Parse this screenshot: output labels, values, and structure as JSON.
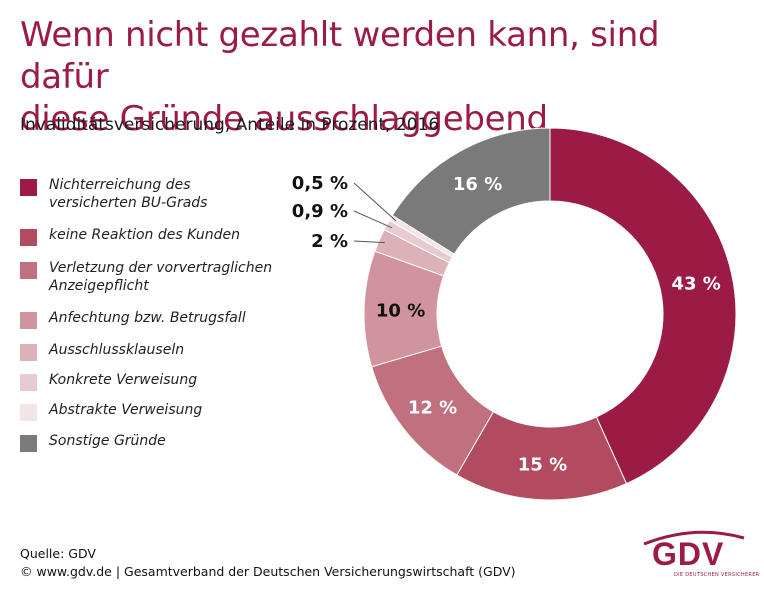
{
  "title": {
    "line1": "Wenn nicht gezahlt werden kann, sind dafür",
    "line2": "diese Gründe ausschlaggebend"
  },
  "subtitle": "Invaliditätsversicherung, Anteile in Prozent, 2016",
  "chart_data": {
    "type": "pie",
    "donut": true,
    "series": [
      {
        "label_lines": [
          "Nichterreichung des",
          "versicherten BU-Grads"
        ],
        "value": 43,
        "value_label": "43 %",
        "color": "#9b1b45"
      },
      {
        "label_lines": [
          "keine Reaktion des Kunden"
        ],
        "value": 15,
        "value_label": "15 %",
        "color": "#b24a60"
      },
      {
        "label_lines": [
          "Verletzung der vorvertraglichen",
          "Anzeigepflicht"
        ],
        "value": 12,
        "value_label": "12 %",
        "color": "#c0707e"
      },
      {
        "label_lines": [
          "Anfechtung bzw. Betrugsfall"
        ],
        "value": 10,
        "value_label": "10 %",
        "color": "#d1939d"
      },
      {
        "label_lines": [
          "Ausschlussklauseln"
        ],
        "value": 2,
        "value_label": "2 %",
        "color": "#ddb1b8"
      },
      {
        "label_lines": [
          "Konkrete Verweisung"
        ],
        "value": 0.9,
        "value_label": "0,9 %",
        "color": "#e8cbd0"
      },
      {
        "label_lines": [
          "Abstrakte Verweisung"
        ],
        "value": 0.5,
        "value_label": "0,5 %",
        "color": "#f3e4e6"
      },
      {
        "label_lines": [
          "Sonstige Gründe"
        ],
        "value": 16,
        "value_label": "16 %",
        "color": "#7a7a7a"
      }
    ]
  },
  "footer": {
    "source": "Quelle: GDV",
    "copyright": "© www.gdv.de | Gesamtverband der Deutschen Versicherungswirtschaft (GDV)"
  },
  "logo": {
    "text": "GDV",
    "subtext": "DIE DEUTSCHEN VERSICHERER"
  }
}
